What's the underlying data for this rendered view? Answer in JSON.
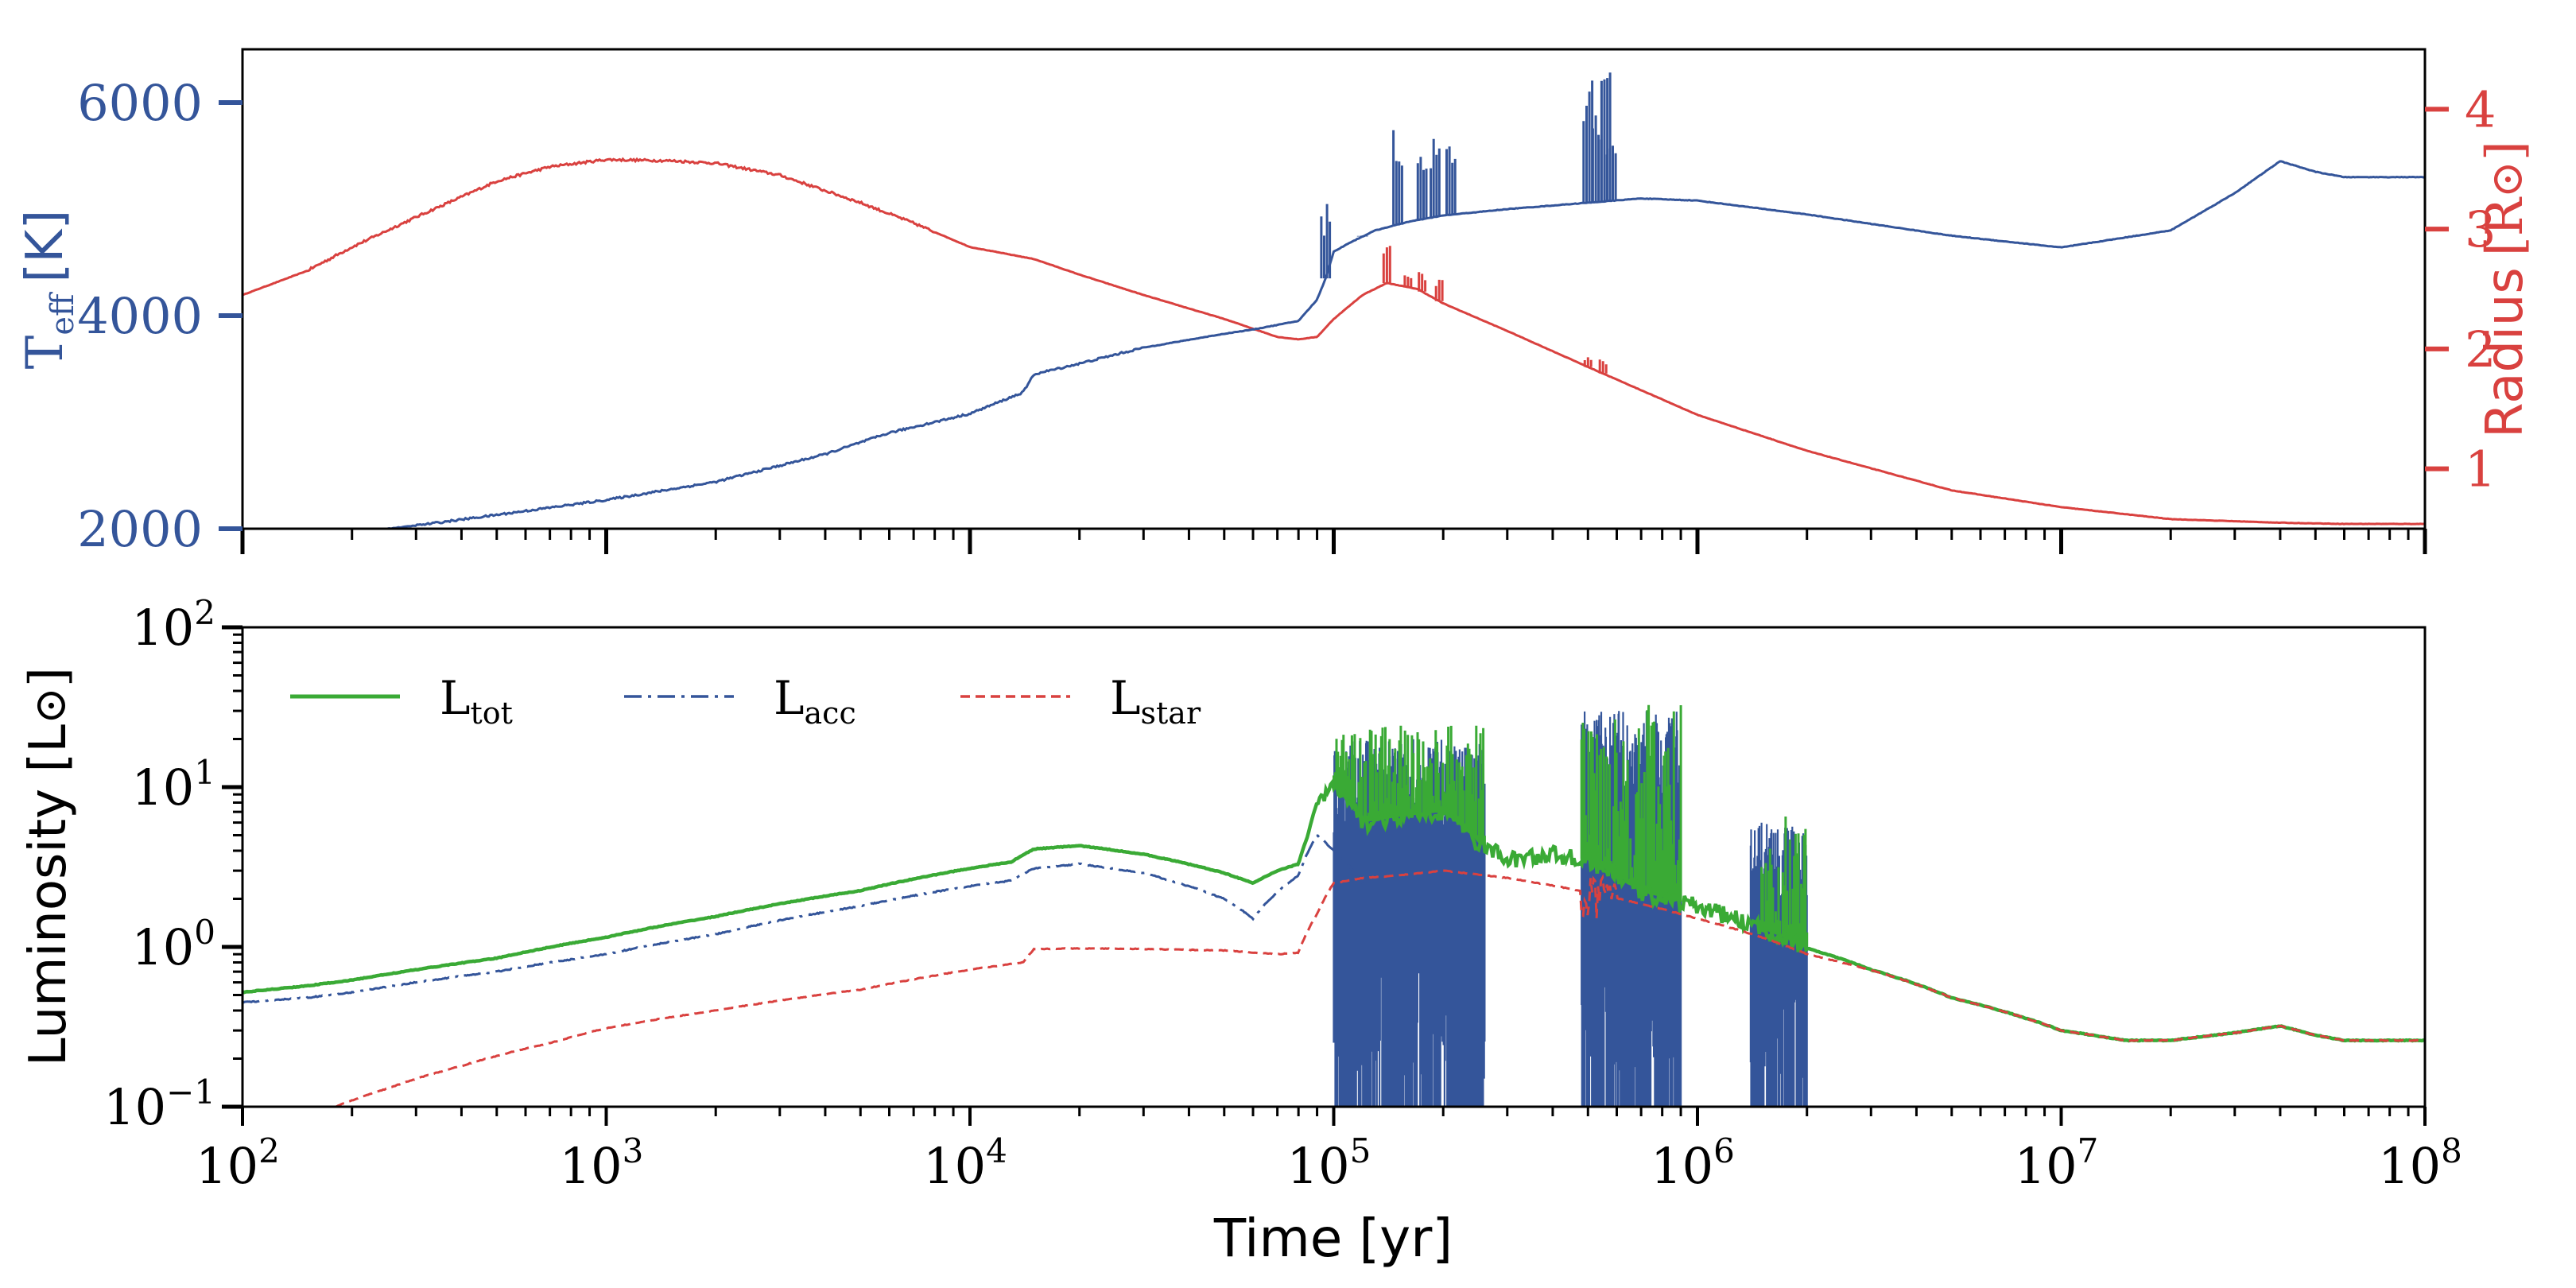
{
  "chart_data": [
    {
      "type": "line",
      "panel": "top",
      "xscale": "log",
      "xlim": [
        100,
        100000000
      ],
      "ylabel": "T",
      "ylabel_sub": "eff",
      "ylabel_unit": "[K]",
      "ylim": [
        2000,
        6500
      ],
      "yticks": [
        2000,
        4000,
        6000
      ],
      "ytick_labels": [
        "2000",
        "4000",
        "6000"
      ],
      "y2label": "Radius",
      "y2label_unit": "[R",
      "y2label_close": "]",
      "y2lim": [
        0.5,
        4.5
      ],
      "y2ticks": [
        1,
        2,
        3,
        4
      ],
      "y2tick_labels": [
        "1",
        "2",
        "3",
        "4"
      ],
      "colors": {
        "teff": "#34559a",
        "radius": "#d9413f"
      },
      "series": [
        {
          "name": "Teff",
          "axis": "left",
          "color": "#34559a",
          "x": [
            100,
            150,
            200,
            250,
            300,
            500,
            1000,
            2000,
            4000,
            6000,
            10000,
            14000,
            15000,
            20000,
            30000,
            50000,
            60000,
            80000,
            90000,
            95000,
            100000,
            110000,
            130000,
            160000,
            200000,
            300000,
            500000,
            700000,
            1000000,
            2000000,
            5000000,
            10000000,
            20000000,
            30000000,
            40000000,
            50000000,
            60000000,
            100000000
          ],
          "y": [
            1900,
            1940,
            1970,
            2000,
            2030,
            2130,
            2270,
            2440,
            2700,
            2900,
            3080,
            3280,
            3450,
            3550,
            3700,
            3830,
            3870,
            3950,
            4150,
            4350,
            4600,
            4680,
            4800,
            4880,
            4940,
            5000,
            5060,
            5100,
            5080,
            4950,
            4750,
            4640,
            4800,
            5150,
            5450,
            5350,
            5300,
            5300
          ]
        },
        {
          "name": "Radius",
          "axis": "right",
          "color": "#d9413f",
          "x": [
            100,
            150,
            200,
            300,
            500,
            700,
            1000,
            1500,
            2000,
            3000,
            5000,
            7000,
            10000,
            15000,
            20000,
            30000,
            50000,
            70000,
            80000,
            90000,
            100000,
            120000,
            140000,
            170000,
            200000,
            300000,
            500000,
            1000000,
            2000000,
            5000000,
            10000000,
            20000000,
            40000000,
            60000000,
            100000000
          ],
          "y": [
            2.45,
            2.65,
            2.85,
            3.1,
            3.4,
            3.52,
            3.58,
            3.57,
            3.55,
            3.45,
            3.22,
            3.05,
            2.85,
            2.75,
            2.62,
            2.45,
            2.25,
            2.1,
            2.08,
            2.1,
            2.25,
            2.45,
            2.55,
            2.5,
            2.38,
            2.15,
            1.85,
            1.45,
            1.15,
            0.82,
            0.68,
            0.58,
            0.55,
            0.54,
            0.54
          ]
        }
      ],
      "spikes": {
        "teff": [
          [
            95000,
            5050
          ],
          [
            120000,
            4750
          ],
          [
            150000,
            5750
          ],
          [
            175000,
            5550
          ],
          [
            190000,
            5700
          ],
          [
            210000,
            5600
          ],
          [
            500000,
            6350
          ],
          [
            530000,
            5900
          ],
          [
            560000,
            6400
          ],
          [
            580000,
            5600
          ]
        ],
        "radius": [
          [
            140000,
            2.87
          ],
          [
            160000,
            2.62
          ],
          [
            175000,
            2.65
          ],
          [
            195000,
            2.6
          ],
          [
            500000,
            1.95
          ],
          [
            550000,
            1.92
          ]
        ]
      }
    },
    {
      "type": "line",
      "panel": "bottom",
      "xscale": "log",
      "yscale": "log",
      "xlim": [
        100,
        100000000
      ],
      "ylim": [
        0.1,
        100
      ],
      "xlabel": "Time [yr]",
      "ylabel": "Luminosity [L",
      "ylabel_close": "]",
      "xticks": [
        100,
        1000,
        10000,
        100000,
        1000000,
        10000000,
        100000000
      ],
      "xtick_bases": [
        "10",
        "10",
        "10",
        "10",
        "10",
        "10",
        "10"
      ],
      "xtick_exps": [
        "2",
        "3",
        "4",
        "5",
        "6",
        "7",
        "8"
      ],
      "yticks": [
        0.1,
        1,
        10,
        100
      ],
      "ytick_bases": [
        "10",
        "10",
        "10",
        "10"
      ],
      "ytick_exps": [
        "−1",
        "0",
        "1",
        "2"
      ],
      "legend": {
        "placement": "top-left",
        "entries": [
          {
            "main": "L",
            "sub": "tot",
            "style": "solid",
            "color": "#3aaa35"
          },
          {
            "main": "L",
            "sub": "acc",
            "style": "dashdot",
            "color": "#34559a"
          },
          {
            "main": "L",
            "sub": "star",
            "style": "dashed",
            "color": "#d9413f"
          }
        ]
      },
      "series": [
        {
          "name": "Ltot",
          "color": "#3aaa35",
          "style": "solid",
          "x": [
            100,
            150,
            200,
            300,
            500,
            1000,
            2000,
            5000,
            10000,
            13000,
            15000,
            20000,
            30000,
            50000,
            60000,
            70000,
            80000,
            85000,
            90000,
            100000,
            120000,
            150000,
            200000,
            250000,
            300000,
            400000,
            500000,
            700000,
            1000000,
            1500000,
            2000000,
            3000000,
            5000000,
            10000000,
            15000000,
            20000000,
            30000000,
            40000000,
            50000000,
            60000000,
            100000000
          ],
          "y": [
            0.52,
            0.57,
            0.62,
            0.72,
            0.85,
            1.15,
            1.55,
            2.25,
            3.1,
            3.4,
            4.1,
            4.3,
            3.8,
            2.9,
            2.5,
            3.0,
            3.3,
            5.0,
            8.0,
            10.0,
            6.0,
            6.5,
            7.0,
            4.5,
            3.5,
            3.8,
            3.5,
            2.2,
            1.8,
            1.3,
            0.98,
            0.72,
            0.48,
            0.3,
            0.26,
            0.26,
            0.29,
            0.32,
            0.28,
            0.26,
            0.26
          ]
        },
        {
          "name": "Lacc",
          "color": "#34559a",
          "style": "dashdot",
          "x": [
            100,
            150,
            200,
            300,
            500,
            1000,
            2000,
            5000,
            10000,
            13000,
            15000,
            20000,
            30000,
            50000,
            60000,
            70000,
            80000,
            90000,
            100000,
            120000
          ],
          "y": [
            0.45,
            0.48,
            0.52,
            0.6,
            0.7,
            0.9,
            1.2,
            1.8,
            2.4,
            2.6,
            3.1,
            3.3,
            2.9,
            2.0,
            1.5,
            2.2,
            2.8,
            5.0,
            4.0,
            2.5
          ]
        },
        {
          "name": "Lstar",
          "color": "#d9413f",
          "style": "dashed",
          "x": [
            180,
            250,
            400,
            700,
            1000,
            2000,
            5000,
            10000,
            14000,
            15000,
            20000,
            30000,
            50000,
            70000,
            80000,
            90000,
            100000,
            120000,
            150000,
            200000,
            300000,
            500000,
            1000000,
            2000000,
            5000000,
            10000000,
            15000000,
            20000000,
            30000000,
            40000000,
            50000000,
            60000000,
            100000000
          ],
          "y": [
            0.1,
            0.13,
            0.18,
            0.25,
            0.31,
            0.4,
            0.54,
            0.72,
            0.8,
            0.97,
            0.98,
            0.97,
            0.95,
            0.9,
            0.92,
            1.6,
            2.5,
            2.7,
            2.8,
            3.0,
            2.7,
            2.2,
            1.5,
            0.9,
            0.48,
            0.3,
            0.26,
            0.26,
            0.29,
            0.32,
            0.28,
            0.26,
            0.26
          ]
        }
      ],
      "burst_regions": [
        {
          "x": [
            100000,
            260000
          ],
          "color": "#34559a",
          "min": 0.1,
          "max": 20
        },
        {
          "x": [
            480000,
            900000
          ],
          "color": "#34559a",
          "min": 0.1,
          "max": 30
        },
        {
          "x": [
            1400000,
            2000000
          ],
          "color": "#34559a",
          "min": 0.1,
          "max": 6
        }
      ]
    }
  ]
}
